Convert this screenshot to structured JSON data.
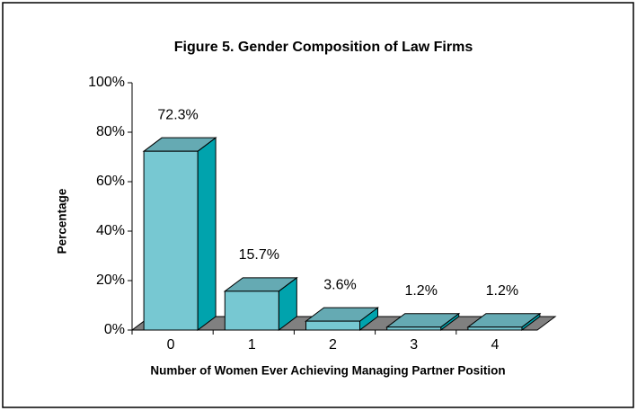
{
  "chart_data": {
    "type": "bar3d",
    "title": "Figure 5.  Gender Composition of Law Firms",
    "x_label": "Number of Women Ever Achieving Managing Partner Position",
    "y_label": "Percentage",
    "categories": [
      "0",
      "1",
      "2",
      "3",
      "4"
    ],
    "values": [
      72.3,
      15.7,
      3.6,
      1.2,
      1.2
    ],
    "value_labels": [
      "72.3%",
      "15.7%",
      "3.6%",
      "1.2%",
      "1.2%"
    ],
    "color": "#77c8d2",
    "ylim": [
      0,
      100
    ],
    "yticks": [
      {
        "value": 0,
        "label": "0%"
      },
      {
        "value": 20,
        "label": "20%"
      },
      {
        "value": 40,
        "label": "40%"
      },
      {
        "value": 60,
        "label": "60%"
      },
      {
        "value": 80,
        "label": "80%"
      },
      {
        "value": 100,
        "label": "100%"
      }
    ]
  }
}
